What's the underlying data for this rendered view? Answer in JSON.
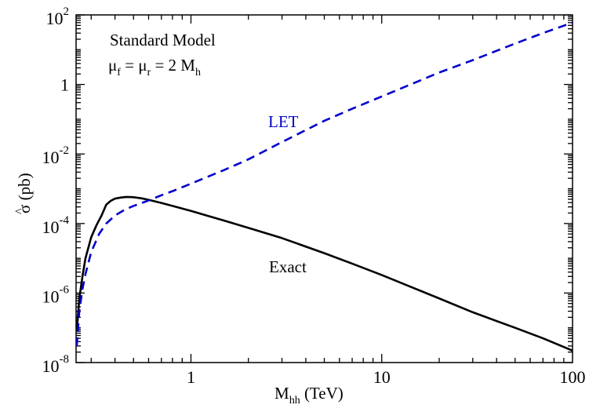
{
  "chart_data": {
    "type": "line",
    "xlabel": {
      "main": "M",
      "sub": "hh",
      "unit": " (TeV)"
    },
    "ylabel": {
      "symbol": "σ",
      "hat": "^",
      "unit": " (pb)"
    },
    "x_scale": "log",
    "y_scale": "log",
    "xlim": [
      0.25,
      100
    ],
    "ylim": [
      1e-08,
      100
    ],
    "x_ticks": [
      {
        "value": 1,
        "label": "1"
      },
      {
        "value": 10,
        "label": "10"
      },
      {
        "value": 100,
        "label": "100"
      }
    ],
    "y_ticks": [
      {
        "value": 1e-08,
        "base": "10",
        "exp": "-8"
      },
      {
        "value": 1e-06,
        "base": "10",
        "exp": "-6"
      },
      {
        "value": 0.0001,
        "base": "10",
        "exp": "-4"
      },
      {
        "value": 0.01,
        "base": "10",
        "exp": "-2"
      },
      {
        "value": 1,
        "base": "1",
        "exp": ""
      },
      {
        "value": 100,
        "base": "10",
        "exp": "2"
      }
    ],
    "grid": false,
    "series": [
      {
        "name": "Exact",
        "color": "#000000",
        "style": "solid",
        "x": [
          0.252,
          0.26,
          0.27,
          0.28,
          0.3,
          0.32,
          0.34,
          0.36,
          0.38,
          0.4,
          0.43,
          0.46,
          0.5,
          0.55,
          0.6,
          0.7,
          0.8,
          1.0,
          1.5,
          2,
          3,
          5,
          7,
          10,
          20,
          30,
          50,
          70,
          100
        ],
        "y": [
          8e-08,
          7e-07,
          3e-06,
          1e-05,
          4e-05,
          9e-05,
          0.00017,
          0.00035,
          0.00045,
          0.00052,
          0.00056,
          0.00058,
          0.00057,
          0.00053,
          0.00048,
          0.00039,
          0.00032,
          0.00023,
          0.00012,
          7.5e-05,
          3.8e-05,
          1.4e-05,
          7e-06,
          3.3e-06,
          7e-07,
          2.8e-07,
          1e-07,
          5e-08,
          2.2e-08
        ]
      },
      {
        "name": "LET",
        "color": "#0000cc",
        "style": "dashed",
        "x": [
          0.252,
          0.26,
          0.27,
          0.28,
          0.3,
          0.33,
          0.36,
          0.4,
          0.45,
          0.5,
          0.6,
          0.7,
          0.8,
          1.0,
          1.5,
          2,
          3,
          5,
          7,
          10,
          20,
          30,
          50,
          70,
          100
        ],
        "y": [
          3e-08,
          3e-07,
          1.3e-06,
          3.5e-06,
          1.5e-05,
          5e-05,
          0.0001,
          0.00017,
          0.00025,
          0.00032,
          0.00046,
          0.00065,
          0.00085,
          0.0014,
          0.0035,
          0.007,
          0.022,
          0.09,
          0.2,
          0.45,
          2.2,
          5,
          15,
          30,
          60
        ]
      }
    ],
    "annotations": [
      {
        "id": "model",
        "text": "Standard Model",
        "color": "#000000"
      },
      {
        "id": "scale",
        "mu": "μ",
        "f": "f",
        "r": "r",
        "eq": " = ",
        "eq2": " = 2 M",
        "h": "h",
        "color": "#000000"
      },
      {
        "id": "let_label",
        "text": "LET",
        "color": "#0000cc"
      },
      {
        "id": "exact_label",
        "text": "Exact",
        "color": "#000000"
      }
    ]
  }
}
